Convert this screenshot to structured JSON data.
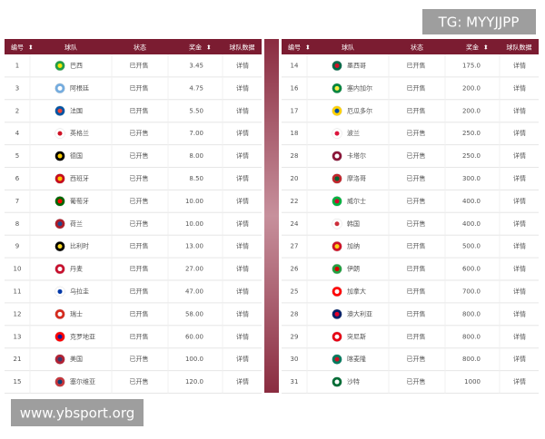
{
  "watermarks": {
    "top": "TG: MYYJJPP",
    "bottom": "www.ybsport.org"
  },
  "tables": [
    {
      "headers": [
        "编号",
        "球队",
        "状态",
        "奖金",
        "球队数据"
      ],
      "rows": [
        [
          "1",
          "巴西",
          "已开售",
          "3.45",
          "详情"
        ],
        [
          "3",
          "阿根廷",
          "已开售",
          "4.75",
          "详情"
        ],
        [
          "2",
          "法国",
          "已开售",
          "5.50",
          "详情"
        ],
        [
          "4",
          "英格兰",
          "已开售",
          "7.00",
          "详情"
        ],
        [
          "5",
          "德国",
          "已开售",
          "8.00",
          "详情"
        ],
        [
          "6",
          "西班牙",
          "已开售",
          "8.50",
          "详情"
        ],
        [
          "7",
          "葡萄牙",
          "已开售",
          "10.00",
          "详情"
        ],
        [
          "8",
          "荷兰",
          "已开售",
          "10.00",
          "详情"
        ],
        [
          "9",
          "比利时",
          "已开售",
          "13.00",
          "详情"
        ],
        [
          "10",
          "丹麦",
          "已开售",
          "27.00",
          "详情"
        ],
        [
          "11",
          "乌拉圭",
          "已开售",
          "47.00",
          "详情"
        ],
        [
          "12",
          "瑞士",
          "已开售",
          "58.00",
          "详情"
        ],
        [
          "13",
          "克罗地亚",
          "已开售",
          "60.00",
          "详情"
        ],
        [
          "21",
          "美国",
          "已开售",
          "100.0",
          "详情"
        ],
        [
          "15",
          "塞尔维亚",
          "已开售",
          "120.0",
          "详情"
        ]
      ]
    },
    {
      "headers": [
        "编号",
        "球队",
        "状态",
        "奖金",
        "球队数据"
      ],
      "rows": [
        [
          "14",
          "墨西哥",
          "已开售",
          "175.0",
          "详情"
        ],
        [
          "16",
          "塞内加尔",
          "已开售",
          "200.0",
          "详情"
        ],
        [
          "17",
          "厄瓜多尔",
          "已开售",
          "200.0",
          "详情"
        ],
        [
          "18",
          "波兰",
          "已开售",
          "250.0",
          "详情"
        ],
        [
          "28",
          "卡塔尔",
          "已开售",
          "250.0",
          "详情"
        ],
        [
          "20",
          "摩洛哥",
          "已开售",
          "300.0",
          "详情"
        ],
        [
          "22",
          "威尔士",
          "已开售",
          "400.0",
          "详情"
        ],
        [
          "24",
          "韩国",
          "已开售",
          "400.0",
          "详情"
        ],
        [
          "27",
          "加纳",
          "已开售",
          "500.0",
          "详情"
        ],
        [
          "26",
          "伊朗",
          "已开售",
          "600.0",
          "详情"
        ],
        [
          "25",
          "加拿大",
          "已开售",
          "700.0",
          "详情"
        ],
        [
          "28",
          "澳大利亚",
          "已开售",
          "800.0",
          "详情"
        ],
        [
          "29",
          "突尼斯",
          "已开售",
          "800.0",
          "详情"
        ],
        [
          "30",
          "喀麦隆",
          "已开售",
          "800.0",
          "详情"
        ],
        [
          "31",
          "沙特",
          "已开售",
          "1000",
          "详情"
        ]
      ]
    }
  ]
}
